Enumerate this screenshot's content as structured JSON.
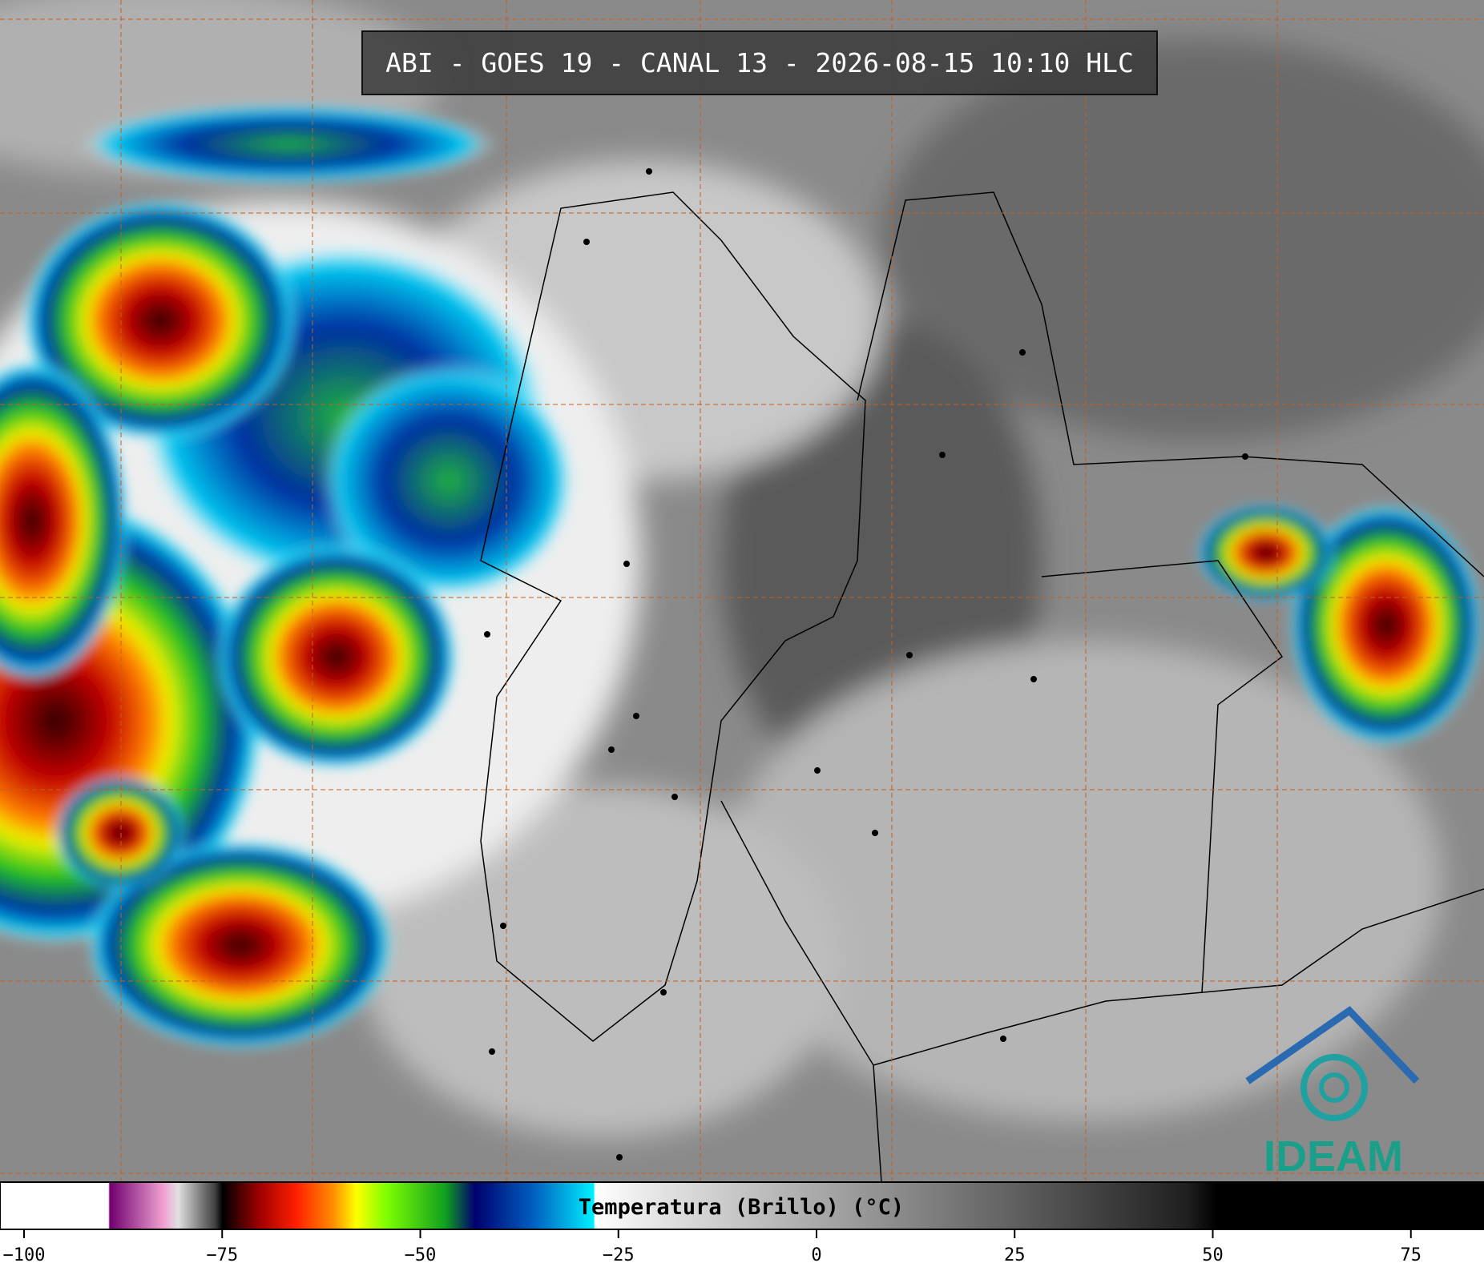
{
  "title": "ABI - GOES 19 - CANAL 13 - 2026-08-15 10:10 HLC",
  "colorbar": {
    "label": "Temperatura (Brillo) (°C)",
    "ticks": [
      {
        "value": -100,
        "label": "−100"
      },
      {
        "value": -75,
        "label": "−75"
      },
      {
        "value": -50,
        "label": "−50"
      },
      {
        "value": -25,
        "label": "−25"
      },
      0,
      25,
      50,
      75
    ]
  },
  "logo": "IDEAM"
}
